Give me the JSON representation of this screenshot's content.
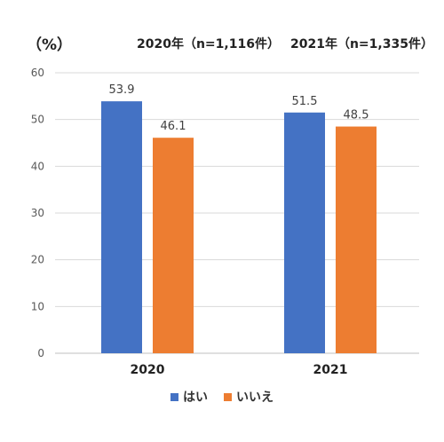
{
  "chart_data": {
    "type": "bar",
    "unit_label": "（%）",
    "header_notes": [
      "2020年（n=1,116件）",
      "2021年（n=1,335件）"
    ],
    "categories": [
      "2020",
      "2021"
    ],
    "series": [
      {
        "name": "はい",
        "color": "#4472c4",
        "values": [
          53.9,
          51.5
        ],
        "labels": [
          "53.9",
          "51.5"
        ]
      },
      {
        "name": "いいえ",
        "color": "#ed7d31",
        "values": [
          46.1,
          48.5
        ],
        "labels": [
          "46.1",
          "48.5"
        ]
      }
    ],
    "yticks": [
      "0",
      "10",
      "20",
      "30",
      "40",
      "50",
      "60"
    ],
    "ylim": [
      0,
      60
    ],
    "grid": true,
    "legend_position": "bottom"
  }
}
